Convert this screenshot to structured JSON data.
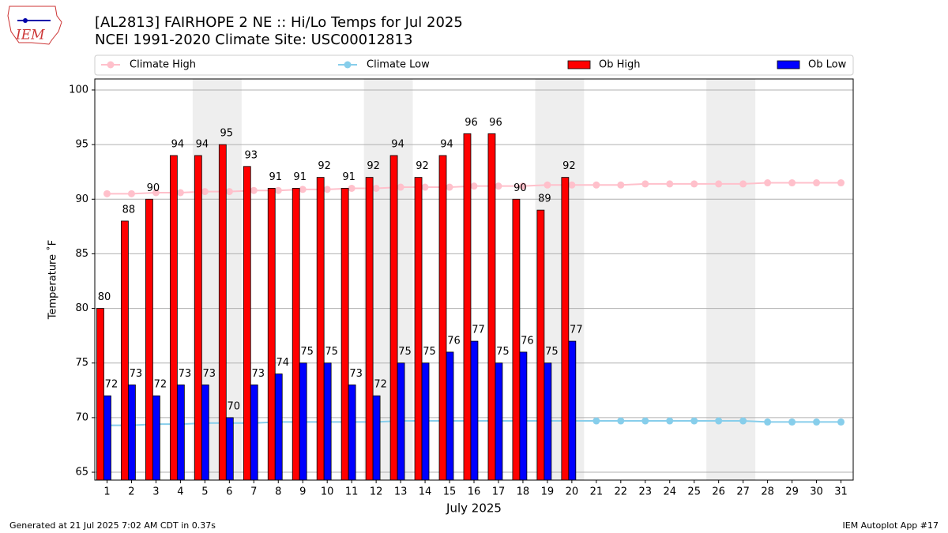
{
  "logo_text": "IEM",
  "footer_left": "Generated at 21 Jul 2025 7:02 AM CDT in 0.37s",
  "footer_right": "IEM Autoplot App #17",
  "chart_data": {
    "type": "bar",
    "title": "[AL2813] FAIRHOPE 2 NE :: Hi/Lo Temps for Jul 2025",
    "subtitle": "NCEI 1991-2020 Climate Site: USC00012813",
    "x_label": "July 2025",
    "y_label": "Temperature ˚F",
    "categories": [
      "1",
      "2",
      "3",
      "4",
      "5",
      "6",
      "7",
      "8",
      "9",
      "10",
      "11",
      "12",
      "13",
      "14",
      "15",
      "16",
      "17",
      "18",
      "19",
      "20",
      "21",
      "22",
      "23",
      "24",
      "25",
      "26",
      "27",
      "28",
      "29",
      "30",
      "31"
    ],
    "series": [
      {
        "name": "Climate High",
        "type": "line",
        "color": "#ffc0cb",
        "values": [
          90.5,
          90.5,
          90.6,
          90.6,
          90.7,
          90.7,
          90.8,
          90.8,
          90.9,
          90.9,
          91.0,
          91.0,
          91.1,
          91.1,
          91.1,
          91.2,
          91.2,
          91.2,
          91.3,
          91.3,
          91.3,
          91.3,
          91.4,
          91.4,
          91.4,
          91.4,
          91.4,
          91.5,
          91.5,
          91.5,
          91.5
        ]
      },
      {
        "name": "Climate Low",
        "type": "line",
        "color": "#87ceeb",
        "values": [
          69.3,
          69.3,
          69.4,
          69.4,
          69.5,
          69.5,
          69.5,
          69.6,
          69.6,
          69.6,
          69.6,
          69.6,
          69.7,
          69.7,
          69.7,
          69.7,
          69.7,
          69.7,
          69.7,
          69.7,
          69.7,
          69.7,
          69.7,
          69.7,
          69.7,
          69.7,
          69.7,
          69.6,
          69.6,
          69.6,
          69.6
        ]
      },
      {
        "name": "Ob High",
        "type": "bar",
        "color": "#ff0000",
        "values": [
          80,
          88,
          90,
          94,
          94,
          95,
          93,
          91,
          91,
          92,
          91,
          92,
          94,
          92,
          94,
          96,
          96,
          90,
          89,
          92,
          null,
          null,
          null,
          null,
          null,
          null,
          null,
          null,
          null,
          null,
          null
        ]
      },
      {
        "name": "Ob Low",
        "type": "bar",
        "color": "#0000ff",
        "values": [
          72,
          73,
          72,
          73,
          73,
          70,
          73,
          74,
          75,
          75,
          73,
          72,
          75,
          75,
          76,
          77,
          75,
          76,
          75,
          77,
          null,
          null,
          null,
          null,
          null,
          null,
          null,
          null,
          null,
          null,
          null
        ]
      }
    ],
    "ylim": [
      64.28,
      101.01
    ],
    "yticks": [
      65,
      70,
      75,
      80,
      85,
      90,
      95,
      100
    ],
    "grid": true,
    "legend": "top"
  }
}
